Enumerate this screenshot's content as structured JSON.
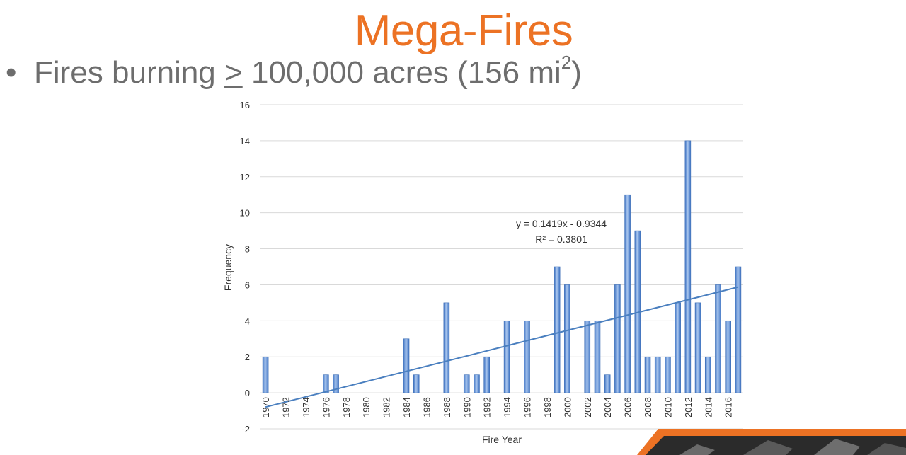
{
  "slide": {
    "title": "Mega-Fires",
    "bullet": {
      "marker": "•",
      "prefix": "Fires burning ",
      "comparator": ">",
      "suffix": " 100,000 acres (156 mi",
      "superscript": "2",
      "close": ")"
    }
  },
  "colors": {
    "title": "#ec7224",
    "bullet_text": "#6d6d6d",
    "bar_fill": "#5b8fd6",
    "trendline": "#4a7fbf",
    "footer_orange": "#ec7224",
    "footer_dark": "#2b2b2b"
  },
  "chart_data": {
    "type": "bar",
    "xlabel": "Fire Year",
    "ylabel": "Frequency",
    "ylim": [
      -2,
      16
    ],
    "yticks": [
      -2,
      0,
      2,
      4,
      6,
      8,
      10,
      12,
      14,
      16
    ],
    "grid": true,
    "categories": [
      1970,
      1971,
      1972,
      1973,
      1974,
      1975,
      1976,
      1977,
      1978,
      1979,
      1980,
      1981,
      1982,
      1983,
      1984,
      1985,
      1986,
      1987,
      1988,
      1989,
      1990,
      1991,
      1992,
      1993,
      1994,
      1995,
      1996,
      1997,
      1998,
      1999,
      2000,
      2001,
      2002,
      2003,
      2004,
      2005,
      2006,
      2007,
      2008,
      2009,
      2010,
      2011,
      2012,
      2013,
      2014,
      2015,
      2016,
      2017
    ],
    "xtick_labels": [
      "1970",
      "1972",
      "1974",
      "1976",
      "1978",
      "1980",
      "1982",
      "1984",
      "1986",
      "1988",
      "1990",
      "1992",
      "1994",
      "1996",
      "1998",
      "2000",
      "2002",
      "2004",
      "2006",
      "2008",
      "2010",
      "2012",
      "2014",
      "2016"
    ],
    "values": [
      2,
      0,
      0,
      0,
      0,
      0,
      1,
      1,
      0,
      0,
      0,
      0,
      0,
      0,
      3,
      1,
      0,
      0,
      5,
      0,
      1,
      1,
      2,
      0,
      4,
      0,
      4,
      0,
      0,
      7,
      6,
      0,
      4,
      4,
      1,
      6,
      11,
      9,
      2,
      2,
      2,
      5,
      14,
      5,
      2,
      6,
      4,
      7
    ],
    "trendline": {
      "slope": 0.1419,
      "intercept": -0.9344,
      "equation": "y = 0.1419x - 0.9344",
      "r_squared": "R² = 0.3801"
    }
  }
}
